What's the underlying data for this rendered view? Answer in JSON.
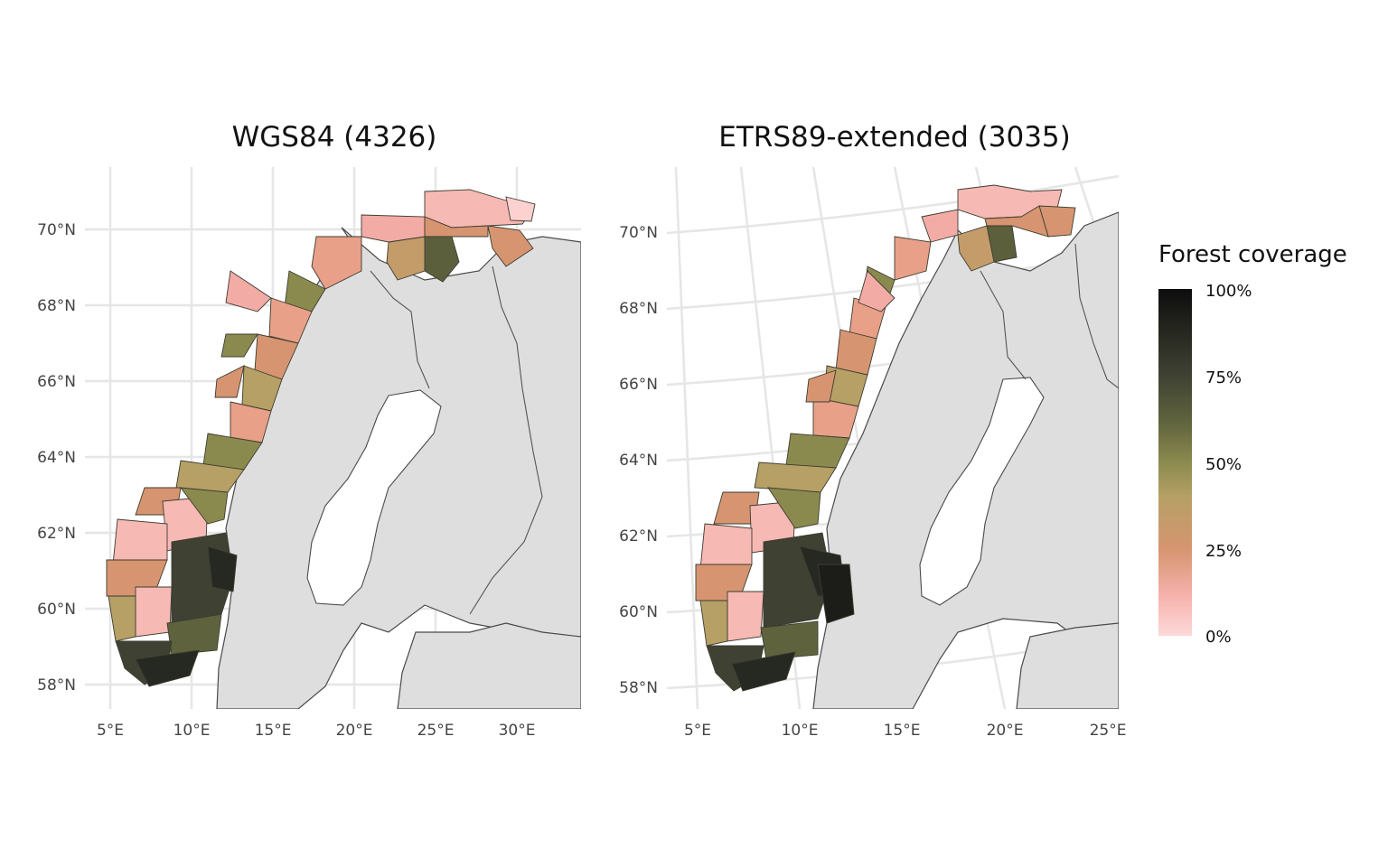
{
  "panels": [
    {
      "title": "WGS84 (4326)",
      "x_ticks": [
        "5°E",
        "10°E",
        "15°E",
        "20°E",
        "25°E",
        "30°E"
      ],
      "y_ticks": [
        "70°N",
        "68°N",
        "66°N",
        "64°N",
        "62°N",
        "60°N",
        "58°N"
      ]
    },
    {
      "title": "ETRS89-extended (3035)",
      "x_ticks": [
        "5°E",
        "10°E",
        "15°E",
        "20°E",
        "25°E"
      ],
      "y_ticks": [
        "70°N",
        "68°N",
        "66°N",
        "64°N",
        "62°N",
        "60°N",
        "58°N"
      ]
    }
  ],
  "legend": {
    "title": "Forest coverage",
    "labels": [
      "100%",
      "75%",
      "50%",
      "25%",
      "0%"
    ],
    "stops": [
      {
        "value": 0,
        "color": "#fdd9da"
      },
      {
        "value": 0.12,
        "color": "#f5b0aa"
      },
      {
        "value": 0.25,
        "color": "#d69570"
      },
      {
        "value": 0.4,
        "color": "#b6a065"
      },
      {
        "value": 0.5,
        "color": "#8b8a4e"
      },
      {
        "value": 0.62,
        "color": "#5f633d"
      },
      {
        "value": 0.75,
        "color": "#3f4233"
      },
      {
        "value": 1,
        "color": "#0d0d0d"
      }
    ]
  },
  "colors": {
    "background": "#ffffff",
    "land": "#dedede",
    "gridline": "#e6e6e6",
    "outline": "#4a4a4a"
  }
}
